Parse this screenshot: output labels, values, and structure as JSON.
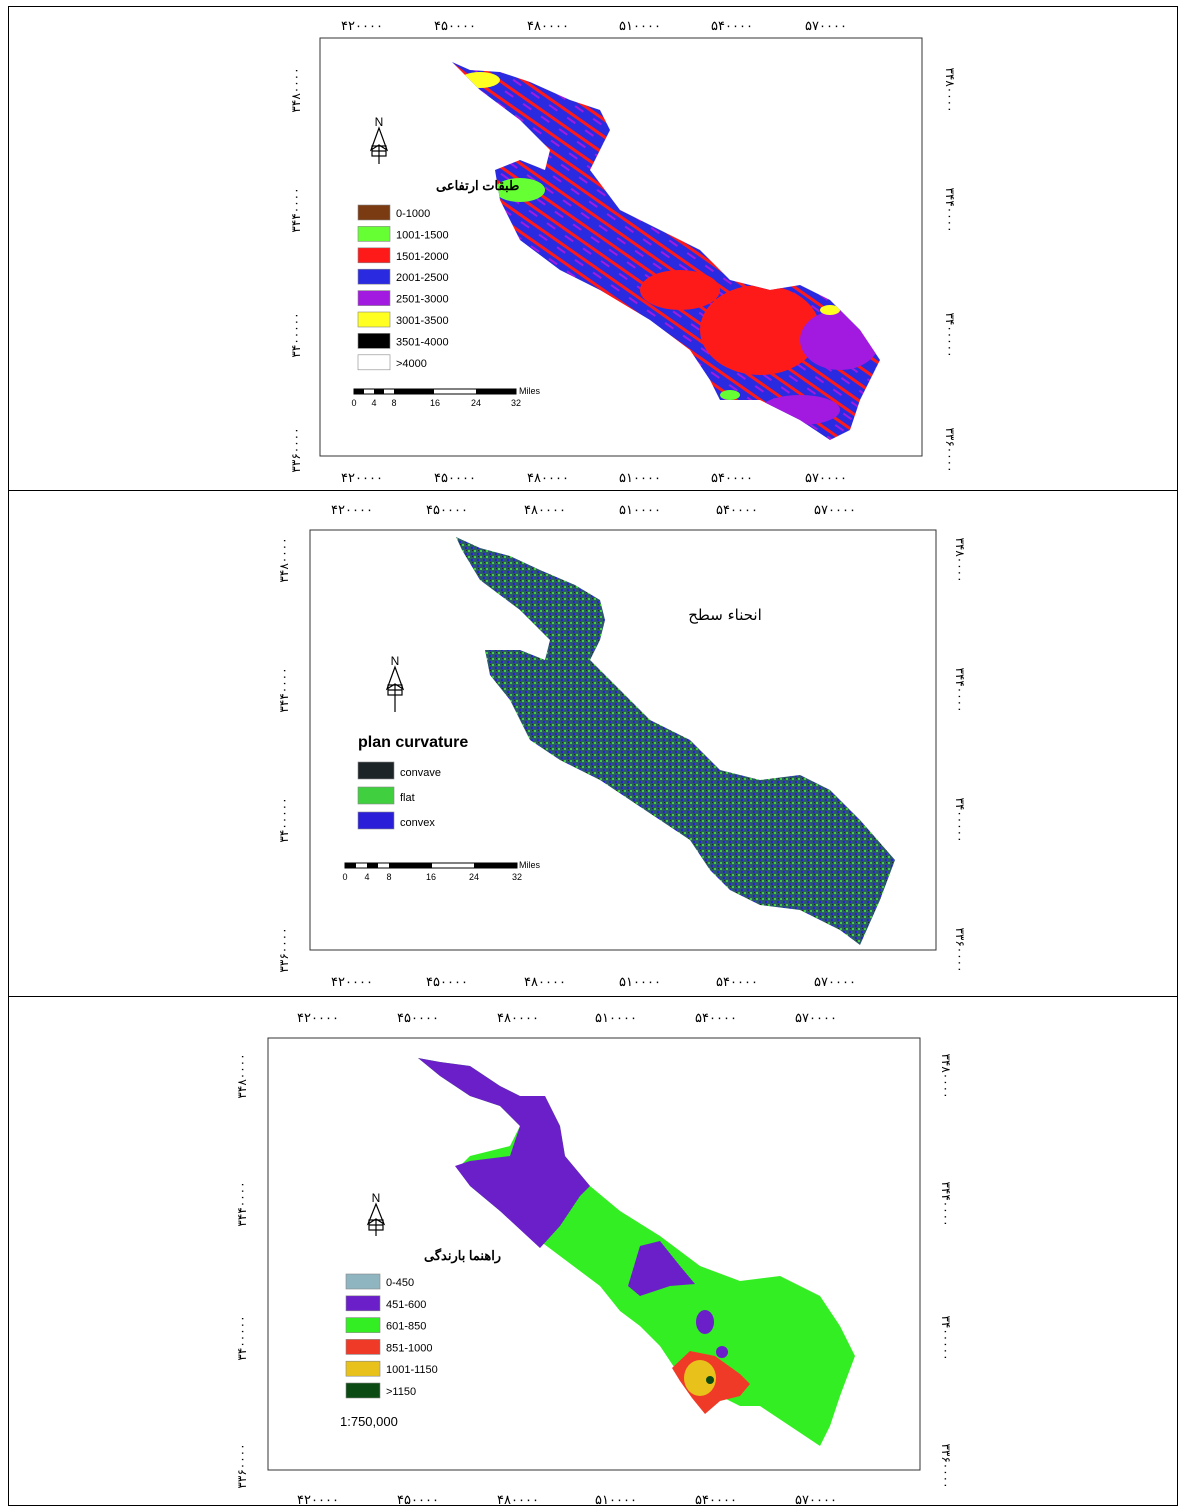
{
  "panels": [
    {
      "legend_title": "طبقات ارتفاعی",
      "legend_items": [
        {
          "label": "0-1000",
          "color": "#7a3a12"
        },
        {
          "label": "1001-1500",
          "color": "#66ff33"
        },
        {
          "label": "1501-2000",
          "color": "#ff1a1a"
        },
        {
          "label": "2001-2500",
          "color": "#2a2ae0"
        },
        {
          "label": "2501-3000",
          "color": "#a21ae0"
        },
        {
          "label": "3001-3500",
          "color": "#ffff22"
        },
        {
          "label": "3501-4000",
          "color": "#000000"
        },
        {
          "label": ">4000",
          "color": "#ffffff"
        }
      ],
      "north_label": "N",
      "scalebar": {
        "unit": "Miles",
        "ticks": [
          "0",
          "4",
          "8",
          "16",
          "24",
          "32"
        ]
      },
      "x_ticks": [
        "۴۲۰۰۰۰",
        "۴۵۰۰۰۰",
        "۴۸۰۰۰۰",
        "۵۱۰۰۰۰",
        "۵۴۰۰۰۰",
        "۵۷۰۰۰۰"
      ],
      "y_ticks": [
        "۳۴۸۰۰۰۰",
        "۳۴۴۰۰۰۰",
        "۳۴۰۰۰۰۰",
        "۳۳۶۰۰۰۰"
      ]
    },
    {
      "map_title": "انحناء سطح",
      "legend_title": "plan curvature",
      "legend_items": [
        {
          "label": "convave",
          "color": "#1c2428"
        },
        {
          "label": "flat",
          "color": "#3fcf3f"
        },
        {
          "label": "convex",
          "color": "#2a1ed8"
        }
      ],
      "north_label": "N",
      "scalebar": {
        "unit": "Miles",
        "ticks": [
          "0",
          "4",
          "8",
          "16",
          "24",
          "32"
        ]
      },
      "x_ticks": [
        "۴۲۰۰۰۰",
        "۴۵۰۰۰۰",
        "۴۸۰۰۰۰",
        "۵۱۰۰۰۰",
        "۵۴۰۰۰۰",
        "۵۷۰۰۰۰"
      ],
      "y_ticks": [
        "۳۴۸۰۰۰۰",
        "۳۴۴۰۰۰۰",
        "۳۴۰۰۰۰۰",
        "۳۳۶۰۰۰۰"
      ]
    },
    {
      "legend_title": "راهنما بارندگی",
      "legend_items": [
        {
          "label": "0-450",
          "color": "#8fb5c0"
        },
        {
          "label": "451-600",
          "color": "#6a1fc8"
        },
        {
          "label": "601-850",
          "color": "#33ee22"
        },
        {
          "label": "851-1000",
          "color": "#f03a28"
        },
        {
          "label": "1001-1150",
          "color": "#e8c21a"
        },
        {
          "label": ">1150",
          "color": "#0b4a12"
        }
      ],
      "north_label": "N",
      "scale_text": "1:750,000",
      "x_ticks": [
        "۴۲۰۰۰۰",
        "۴۵۰۰۰۰",
        "۴۸۰۰۰۰",
        "۵۱۰۰۰۰",
        "۵۴۰۰۰۰",
        "۵۷۰۰۰۰"
      ],
      "y_ticks": [
        "۳۴۸۰۰۰۰",
        "۳۴۴۰۰۰۰",
        "۳۴۰۰۰۰۰",
        "۳۳۶۰۰۰۰"
      ]
    }
  ]
}
